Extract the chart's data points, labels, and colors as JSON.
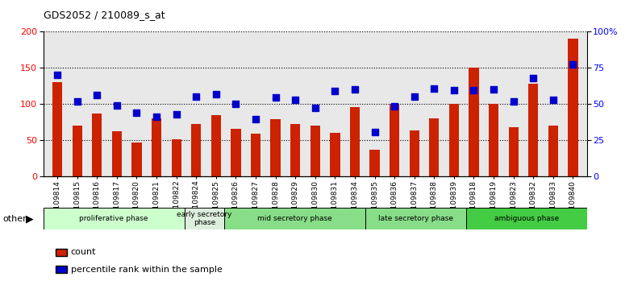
{
  "title": "GDS2052 / 210089_s_at",
  "samples": [
    "GSM109814",
    "GSM109815",
    "GSM109816",
    "GSM109817",
    "GSM109820",
    "GSM109821",
    "GSM109822",
    "GSM109824",
    "GSM109825",
    "GSM109826",
    "GSM109827",
    "GSM109828",
    "GSM109829",
    "GSM109830",
    "GSM109831",
    "GSM109834",
    "GSM109835",
    "GSM109836",
    "GSM109837",
    "GSM109838",
    "GSM109839",
    "GSM109818",
    "GSM109819",
    "GSM109823",
    "GSM109832",
    "GSM109833",
    "GSM109840"
  ],
  "counts": [
    130,
    70,
    87,
    63,
    47,
    80,
    51,
    72,
    85,
    66,
    59,
    79,
    72,
    70,
    60,
    96,
    37,
    100,
    64,
    80,
    100,
    150,
    100,
    68,
    128,
    70,
    190
  ],
  "percentiles_left_scale": [
    140,
    104,
    112,
    98,
    88,
    83,
    86,
    110,
    114,
    100,
    79,
    109,
    106,
    95,
    118,
    120,
    62,
    97,
    110,
    121,
    119,
    119,
    120,
    104,
    136,
    106,
    155
  ],
  "phases": [
    {
      "label": "proliferative phase",
      "start": 0,
      "end": 7,
      "color": "#ccffcc"
    },
    {
      "label": "early secretory\nphase",
      "start": 7,
      "end": 9,
      "color": "#ddeedd"
    },
    {
      "label": "mid secretory phase",
      "start": 9,
      "end": 16,
      "color": "#88dd88"
    },
    {
      "label": "late secretory phase",
      "start": 16,
      "end": 21,
      "color": "#88dd88"
    },
    {
      "label": "ambiguous phase",
      "start": 21,
      "end": 27,
      "color": "#44cc44"
    }
  ],
  "bar_color": "#cc2200",
  "dot_color": "#0000cc",
  "ylim_left": [
    0,
    200
  ],
  "yticks_left": [
    0,
    50,
    100,
    150,
    200
  ],
  "yticks_right": [
    0,
    25,
    50,
    75,
    100
  ],
  "ytick_labels_right": [
    "0",
    "25",
    "50",
    "75",
    "100%"
  ],
  "bar_width": 0.5,
  "dot_size": 28,
  "bg_color": "#e8e8e8"
}
